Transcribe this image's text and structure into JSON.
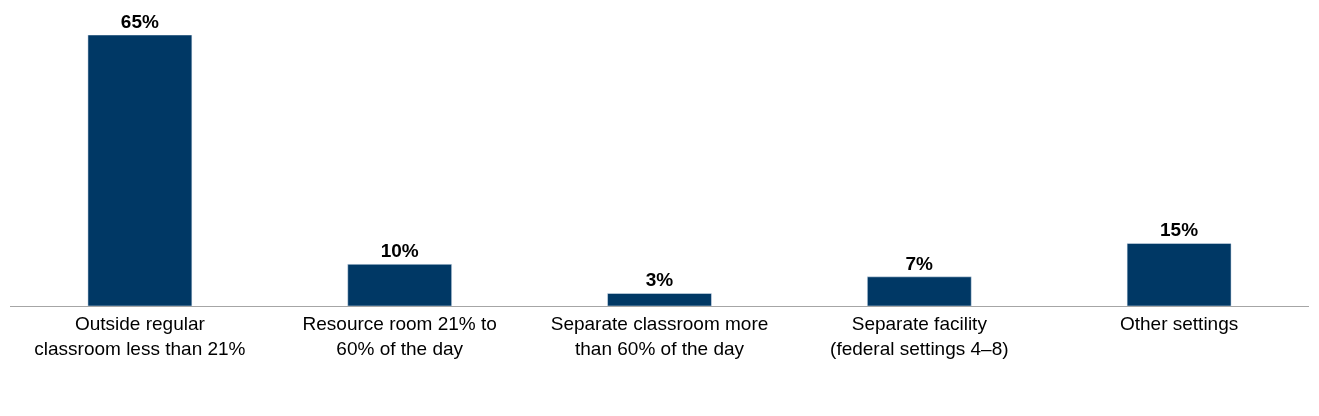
{
  "chart_data": {
    "type": "bar",
    "categories": [
      "Outside regular classroom less than 21%",
      "Resource room 21% to 60% of the day",
      "Separate classroom more than 60% of the day",
      "Separate facility (federal settings 4–8)",
      "Other settings"
    ],
    "values": [
      65,
      10,
      3,
      7,
      15
    ],
    "value_labels": [
      "65%",
      "10%",
      "3%",
      "7%",
      "15%"
    ],
    "color": "#003865"
  }
}
